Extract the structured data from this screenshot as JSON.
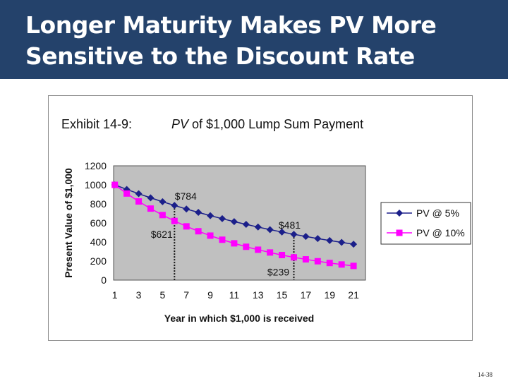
{
  "title_line1": "Longer Maturity Makes PV More",
  "title_line2": "Sensitive to the Discount Rate",
  "exhibit": {
    "label": "Exhibit 14-9:",
    "caption_italic": "PV",
    "caption_rest": " of $1,000 Lump Sum Payment"
  },
  "page_number": "14-38",
  "colors": {
    "header": "#24426b",
    "plot_bg": "#c0c0c0",
    "series_5": "#1b1f8a",
    "series_10": "#ff00ff"
  },
  "chart_data": {
    "type": "line",
    "xlabel": "Year in which $1,000 is received",
    "ylabel": "Present Value of $1,000",
    "ylim": [
      0,
      1200
    ],
    "yticks": [
      0,
      200,
      400,
      600,
      800,
      1000,
      1200
    ],
    "xticks": [
      1,
      3,
      5,
      7,
      9,
      11,
      13,
      15,
      17,
      19,
      21
    ],
    "x": [
      1,
      2,
      3,
      4,
      5,
      6,
      7,
      8,
      9,
      10,
      11,
      12,
      13,
      14,
      15,
      16,
      17,
      18,
      19,
      20,
      21
    ],
    "grid": false,
    "legend": "right",
    "series": [
      {
        "name": "PV @ 5%",
        "marker": "diamond",
        "values": [
          1000,
          952,
          907,
          864,
          823,
          784,
          746,
          711,
          677,
          645,
          614,
          585,
          557,
          530,
          505,
          481,
          458,
          436,
          416,
          396,
          377
        ]
      },
      {
        "name": "PV @ 10%",
        "marker": "square",
        "values": [
          1000,
          909,
          826,
          751,
          683,
          621,
          564,
          513,
          467,
          424,
          386,
          350,
          319,
          290,
          263,
          239,
          218,
          198,
          180,
          164,
          149
        ]
      }
    ],
    "annotations": [
      {
        "text": "$784",
        "x": 6,
        "y": 784,
        "series": 0
      },
      {
        "text": "$621",
        "x": 6,
        "y": 621,
        "series": 1
      },
      {
        "text": "$481",
        "x": 16,
        "y": 481,
        "series": 0
      },
      {
        "text": "$239",
        "x": 16,
        "y": 239,
        "series": 1
      }
    ]
  }
}
